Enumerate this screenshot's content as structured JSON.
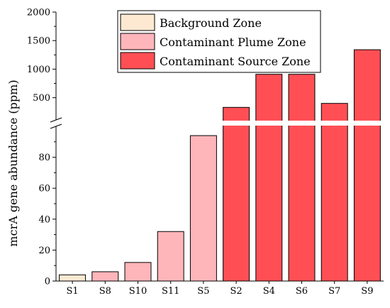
{
  "chart_data": {
    "type": "bar",
    "title": "",
    "xlabel": "",
    "ylabel": "mcrA gene abundance (ppm)",
    "y_axis_break": true,
    "lower_ylim": [
      0,
      100
    ],
    "upper_ylim": [
      110,
      2000
    ],
    "lower_ticks": [
      "0",
      "20",
      "40",
      "60",
      "80"
    ],
    "upper_ticks": [
      "500",
      "1000",
      "1500",
      "2000"
    ],
    "legend": {
      "placement": "top-center",
      "entries": [
        {
          "label": "Background Zone",
          "color": "#FDE9D2"
        },
        {
          "label": "Contaminant Plume Zone",
          "color": "#FFB6BB"
        },
        {
          "label": "Contaminant Source Zone",
          "color": "#FF4F55"
        }
      ]
    },
    "categories": [
      "S1",
      "S8",
      "S10",
      "S11",
      "S5",
      "S2",
      "S4",
      "S6",
      "S7",
      "S9"
    ],
    "values": [
      4,
      6,
      12,
      32,
      94,
      330,
      910,
      910,
      400,
      1340
    ],
    "zones": [
      0,
      1,
      1,
      1,
      1,
      2,
      2,
      2,
      2,
      2
    ],
    "grid": false
  }
}
